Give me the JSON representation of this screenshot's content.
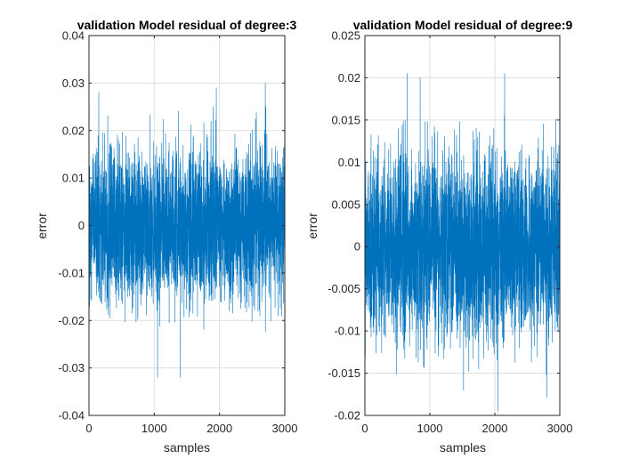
{
  "chart_data": [
    {
      "type": "line",
      "title": "validation Model residual of degree:3",
      "xlabel": "samples",
      "ylabel": "error",
      "xlim": [
        0,
        3000
      ],
      "ylim": [
        -0.04,
        0.04
      ],
      "xticks": [
        0,
        1000,
        2000,
        3000
      ],
      "xtick_labels": [
        "0",
        "1000",
        "2000",
        "3000"
      ],
      "yticks": [
        0.04,
        0.03,
        0.02,
        0.01,
        0,
        -0.01,
        -0.02,
        -0.03,
        -0.04
      ],
      "ytick_labels": [
        "0.04",
        "0.03",
        "0.02",
        "0.01",
        "0",
        "-0.01",
        "-0.02",
        "-0.03",
        "-0.04"
      ],
      "grid": true,
      "color": "#0072BD",
      "series": [
        {
          "n_samples": 3000,
          "mean": 0,
          "std": 0.0078,
          "min": -0.032,
          "max": 0.03,
          "peaks": [
            {
              "x": 150,
              "y": 0.028
            },
            {
              "x": 1050,
              "y": -0.032
            },
            {
              "x": 1400,
              "y": -0.032
            },
            {
              "x": 1950,
              "y": 0.029
            },
            {
              "x": 2700,
              "y": 0.03
            }
          ]
        }
      ]
    },
    {
      "type": "line",
      "title": "validation Model residual of degree:9",
      "xlabel": "samples",
      "ylabel": "error",
      "xlim": [
        0,
        3000
      ],
      "ylim": [
        -0.02,
        0.025
      ],
      "xticks": [
        0,
        1000,
        2000,
        3000
      ],
      "xtick_labels": [
        "0",
        "1000",
        "2000",
        "3000"
      ],
      "yticks": [
        0.025,
        0.02,
        0.015,
        0.01,
        0.005,
        0,
        -0.005,
        -0.01,
        -0.015,
        -0.02
      ],
      "ytick_labels": [
        "0.025",
        "0.02",
        "0.015",
        "0.01",
        "0.005",
        "0",
        "-0.005",
        "-0.01",
        "-0.015",
        "-0.02"
      ],
      "grid": true,
      "color": "#0072BD",
      "series": [
        {
          "n_samples": 3000,
          "mean": 0,
          "std": 0.0055,
          "min": -0.0195,
          "max": 0.0205,
          "peaks": [
            {
              "x": 650,
              "y": 0.0205
            },
            {
              "x": 850,
              "y": 0.02
            },
            {
              "x": 2050,
              "y": -0.0195
            },
            {
              "x": 2150,
              "y": 0.0205
            }
          ]
        }
      ]
    }
  ]
}
